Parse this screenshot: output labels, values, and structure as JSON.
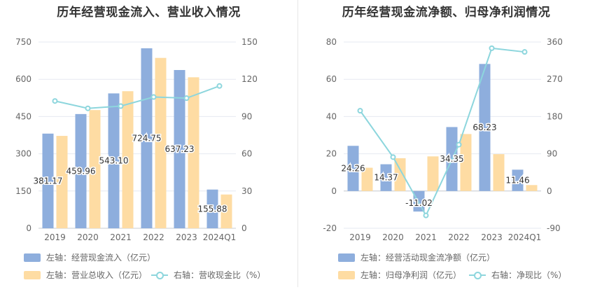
{
  "chart_data": [
    {
      "type": "bar",
      "title": "历年经营现金流入、营业收入情况",
      "categories": [
        "2019",
        "2020",
        "2021",
        "2022",
        "2023",
        "2024Q1"
      ],
      "y_left": {
        "ticks": [
          "0",
          "150",
          "300",
          "450",
          "600",
          "750"
        ],
        "ylim": [
          0,
          750
        ]
      },
      "y_right": {
        "ticks": [
          "0",
          "30",
          "60",
          "90",
          "120",
          "150"
        ],
        "ylim": [
          0,
          150
        ]
      },
      "series": [
        {
          "name": "左轴：经营现金流入（亿元）",
          "type": "bar",
          "axis": "left",
          "color": "#8eaedd",
          "values": [
            381.17,
            459.96,
            543.1,
            724.75,
            637.23,
            155.88
          ],
          "labels": [
            "381.17",
            "459.96",
            "543.10",
            "724.75",
            "637.23",
            "155.88"
          ]
        },
        {
          "name": "左轴：营业总收入（亿元）",
          "type": "bar",
          "axis": "left",
          "color": "#fedca3",
          "values": [
            372,
            476,
            552,
            686,
            608,
            136
          ]
        },
        {
          "name": "右轴：营收现金比（%）",
          "type": "line",
          "axis": "right",
          "color": "#8dd6dd",
          "values": [
            102.5,
            96.6,
            98.4,
            105.7,
            104.8,
            114.6
          ]
        }
      ],
      "grid": true
    },
    {
      "type": "bar",
      "title": "历年经营现金流净额、归母净利润情况",
      "categories": [
        "2019",
        "2020",
        "2021",
        "2022",
        "2023",
        "2024Q1"
      ],
      "y_left": {
        "ticks": [
          "-20",
          "0",
          "20",
          "40",
          "60",
          "80"
        ],
        "ylim": [
          -20,
          80
        ]
      },
      "y_right": {
        "ticks": [
          "-90",
          "0",
          "90",
          "180",
          "270",
          "360"
        ],
        "ylim": [
          -90,
          360
        ]
      },
      "series": [
        {
          "name": "左轴：经营活动现金流净额（亿元）",
          "type": "bar",
          "axis": "left",
          "color": "#8eaedd",
          "values": [
            24.26,
            14.37,
            -11.02,
            34.35,
            68.23,
            11.46
          ],
          "labels": [
            "24.26",
            "14.37",
            "-11.02",
            "34.35",
            "68.23",
            "11.46"
          ]
        },
        {
          "name": "左轴：归母净利润（亿元）",
          "type": "bar",
          "axis": "left",
          "color": "#fedca3",
          "values": [
            12.5,
            17.6,
            18.6,
            30.6,
            19.8,
            3.2
          ]
        },
        {
          "name": "右轴：净现比（%）",
          "type": "line",
          "axis": "right",
          "color": "#8dd6dd",
          "values": [
            194,
            82,
            -59,
            112,
            345,
            336
          ]
        }
      ],
      "grid": true
    }
  ]
}
